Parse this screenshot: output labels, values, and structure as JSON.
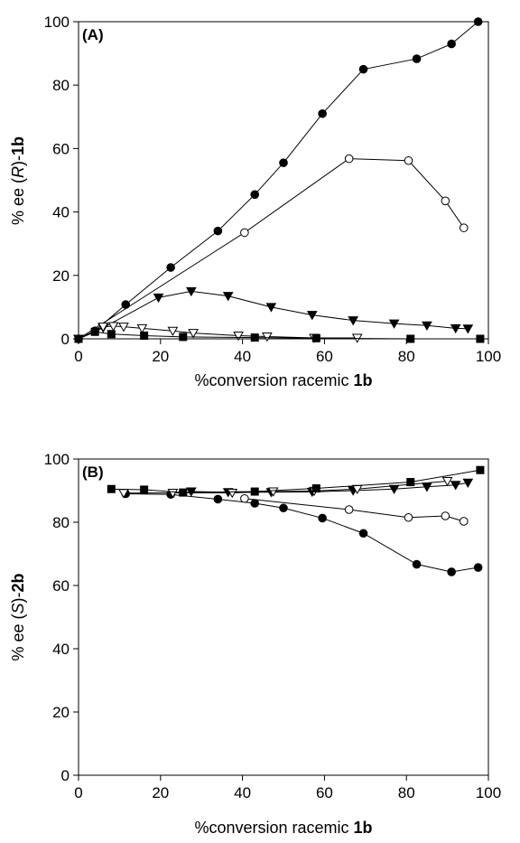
{
  "chart_data": [
    {
      "type": "line",
      "panel_label": "(A)",
      "xlabel_text": "%conversion racemic ",
      "xlabel_bold": "1b",
      "ylabel_pre": "% ee (",
      "ylabel_italic": "R",
      "ylabel_post": ")-",
      "ylabel_bold": "1b",
      "xlim": [
        0,
        100
      ],
      "ylim": [
        0,
        100
      ],
      "x_ticks": [
        0,
        20,
        40,
        60,
        80,
        100
      ],
      "y_ticks": [
        0,
        20,
        40,
        60,
        80,
        100
      ],
      "grid": false,
      "series": [
        {
          "marker": "circle-filled",
          "x": [
            0,
            4,
            11.5,
            22.5,
            34,
            43,
            50,
            59.5,
            69.5,
            82.5,
            91,
            97.5
          ],
          "y": [
            0,
            2.5,
            10.8,
            22.5,
            34,
            45.5,
            55.5,
            71,
            85,
            88.3,
            93,
            100
          ]
        },
        {
          "marker": "circle-open",
          "x": [
            0,
            40.5,
            66,
            80.5,
            89.5,
            94
          ],
          "y": [
            0,
            33.5,
            56.8,
            56.2,
            43.5,
            35
          ]
        },
        {
          "marker": "triangle-down-filled",
          "x": [
            0,
            6,
            19.5,
            27.5,
            36.5,
            47,
            57,
            67,
            77,
            85,
            92,
            95
          ],
          "y": [
            0,
            3.5,
            13,
            15,
            13.5,
            10,
            7.5,
            5.8,
            4.8,
            4.2,
            3.3,
            3.2
          ]
        },
        {
          "marker": "triangle-down-open",
          "x": [
            0,
            6,
            8.5,
            11,
            15.5,
            23,
            28,
            39,
            46,
            57.5,
            68
          ],
          "y": [
            0,
            3.8,
            4,
            3.8,
            3.3,
            2.5,
            1.8,
            1,
            0.7,
            0.3,
            0.3
          ]
        },
        {
          "marker": "square-filled",
          "x": [
            0,
            4,
            8,
            16,
            25.5,
            43,
            58,
            81,
            98
          ],
          "y": [
            0,
            2.2,
            1.5,
            1,
            0.6,
            0.4,
            0.2,
            0,
            0
          ]
        }
      ]
    },
    {
      "type": "line",
      "panel_label": "(B)",
      "xlabel_text": "%conversion racemic ",
      "xlabel_bold": "1b",
      "ylabel_pre": "% ee (",
      "ylabel_italic": "S",
      "ylabel_post": ")-",
      "ylabel_bold": "2b",
      "xlim": [
        0,
        100
      ],
      "ylim": [
        0,
        100
      ],
      "x_ticks": [
        0,
        20,
        40,
        60,
        80,
        100
      ],
      "y_ticks": [
        0,
        20,
        40,
        60,
        80,
        100
      ],
      "grid": false,
      "series": [
        {
          "marker": "circle-filled",
          "x": [
            11.5,
            22.5,
            34,
            43,
            50,
            59.5,
            69.5,
            82.5,
            91,
            97.5
          ],
          "y": [
            89,
            88.8,
            87.3,
            86,
            84.5,
            81.3,
            76.5,
            66.7,
            64.3,
            65.7
          ]
        },
        {
          "marker": "circle-open",
          "x": [
            40.5,
            66,
            80.5,
            89.5,
            94
          ],
          "y": [
            87.5,
            84,
            81.5,
            82,
            80.3
          ]
        },
        {
          "marker": "triangle-down-filled",
          "x": [
            27.5,
            36.5,
            47,
            57,
            67,
            77,
            85,
            92,
            95
          ],
          "y": [
            89.7,
            89.5,
            89.5,
            89.6,
            90,
            90.5,
            91.2,
            91.8,
            92.5
          ]
        },
        {
          "marker": "triangle-down-open",
          "x": [
            11,
            23,
            37.5,
            47.5,
            57.5,
            68,
            90
          ],
          "y": [
            89.2,
            89.3,
            89.3,
            89.7,
            89.9,
            90.5,
            93
          ]
        },
        {
          "marker": "square-filled",
          "x": [
            8,
            16,
            25.5,
            43,
            58,
            81,
            98
          ],
          "y": [
            90.5,
            90.3,
            89.4,
            89.7,
            90.7,
            92.7,
            96.5
          ]
        }
      ]
    }
  ]
}
